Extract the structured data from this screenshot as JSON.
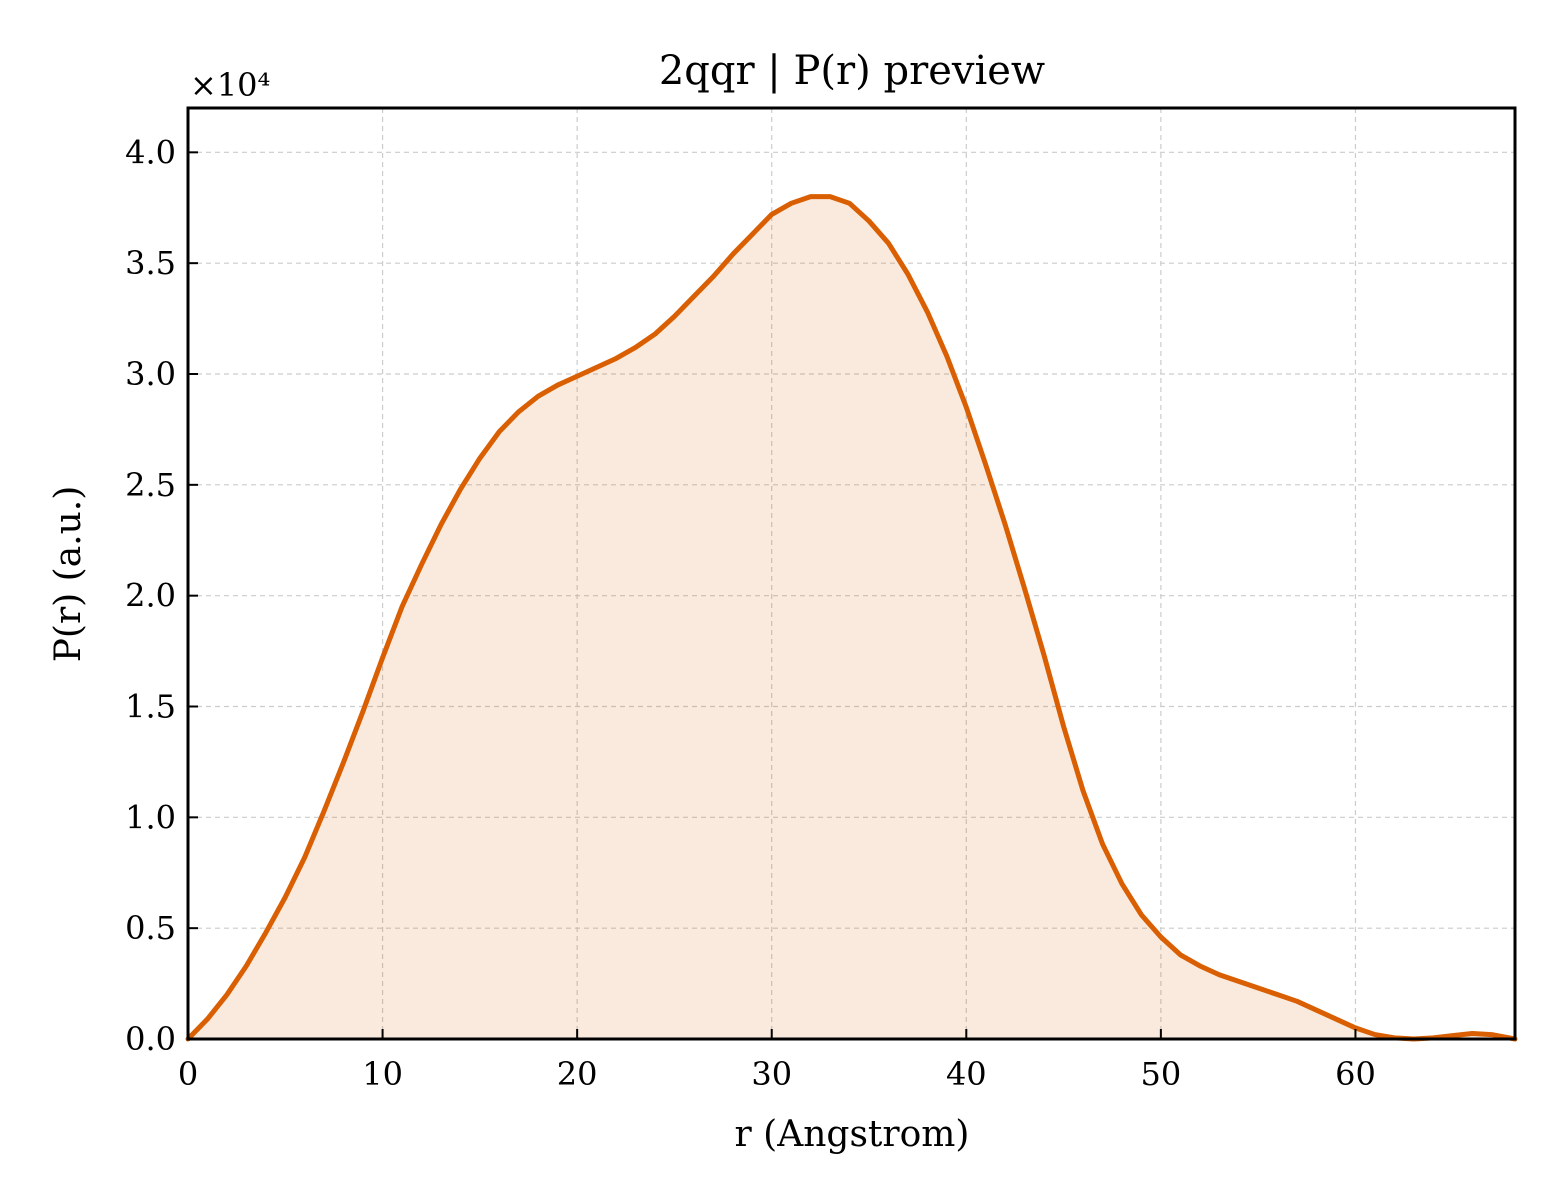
{
  "colors": {
    "line": "#d95f02",
    "fill": "#d95f02",
    "fill_opacity": 0.13,
    "grid": "#cccccc",
    "axis": "#000000"
  },
  "chart_data": {
    "type": "area",
    "title": "2qqr | P(r) preview",
    "xlabel": "r (Angstrom)",
    "ylabel": "P(r) (a.u.)",
    "y_multiplier": "×10⁴",
    "xlim": [
      0,
      68.2
    ],
    "ylim": [
      0,
      4.2
    ],
    "x_ticks": [
      0,
      10,
      20,
      30,
      40,
      50,
      60
    ],
    "x_tick_labels": [
      "0",
      "10",
      "20",
      "30",
      "40",
      "50",
      "60"
    ],
    "y_ticks": [
      0,
      0.5,
      1.0,
      1.5,
      2.0,
      2.5,
      3.0,
      3.5,
      4.0
    ],
    "y_tick_labels": [
      "0.0",
      "0.5",
      "1.0",
      "1.5",
      "2.0",
      "2.5",
      "3.0",
      "3.5",
      "4.0"
    ],
    "grid": true,
    "series": [
      {
        "x": [
          0,
          1,
          2,
          3,
          4,
          5,
          6,
          7,
          8,
          9,
          10,
          11,
          12,
          13,
          14,
          15,
          16,
          17,
          18,
          19,
          20,
          21,
          22,
          23,
          24,
          25,
          26,
          27,
          28,
          29,
          30,
          31,
          32,
          33,
          34,
          35,
          36,
          37,
          38,
          39,
          40,
          41,
          42,
          43,
          44,
          45,
          46,
          47,
          48,
          49,
          50,
          51,
          52,
          53,
          54,
          55,
          56,
          57,
          58,
          59,
          60,
          61,
          62,
          63,
          64,
          65,
          66,
          67,
          68.2
        ],
        "values": [
          0,
          0.09,
          0.2,
          0.33,
          0.48,
          0.64,
          0.82,
          1.03,
          1.25,
          1.48,
          1.72,
          1.95,
          2.14,
          2.32,
          2.48,
          2.62,
          2.74,
          2.83,
          2.9,
          2.95,
          2.99,
          3.03,
          3.07,
          3.12,
          3.18,
          3.26,
          3.35,
          3.44,
          3.54,
          3.63,
          3.72,
          3.77,
          3.8,
          3.8,
          3.77,
          3.69,
          3.59,
          3.45,
          3.28,
          3.08,
          2.85,
          2.59,
          2.32,
          2.03,
          1.73,
          1.41,
          1.12,
          0.88,
          0.7,
          0.56,
          0.46,
          0.38,
          0.33,
          0.29,
          0.26,
          0.23,
          0.2,
          0.17,
          0.13,
          0.09,
          0.05,
          0.02,
          0.005,
          0.0,
          0.005,
          0.015,
          0.025,
          0.02,
          0
        ]
      }
    ]
  }
}
